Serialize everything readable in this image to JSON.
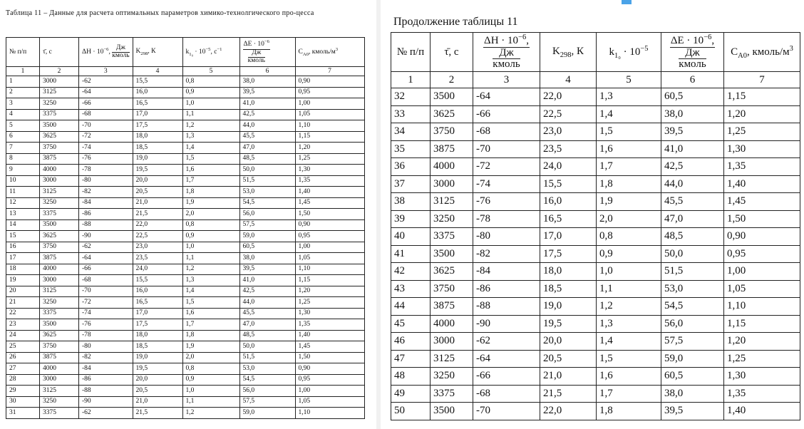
{
  "tables": [
    {
      "title": "Таблица 11 – Данные для расчета оптимальных параметров химико-технолгического про-цесса",
      "headers": [
        {
          "segments": [
            {
              "text": "№ п/п"
            }
          ]
        },
        {
          "segments": [
            {
              "text": "τ̄, с"
            }
          ]
        },
        {
          "segments": [
            {
              "text": "ΔH · 10"
            },
            {
              "text": "−6",
              "sup": true
            },
            {
              "text": ","
            }
          ],
          "frac": [
            "Дж",
            "кмоль"
          ]
        },
        {
          "segments": [
            {
              "text": "K"
            },
            {
              "text": "298",
              "sub": true
            },
            {
              "text": ", К"
            }
          ]
        },
        {
          "segments": [
            {
              "text": "k"
            },
            {
              "text": "1₀",
              "sub": true
            },
            {
              "text": " · 10"
            },
            {
              "text": "−5",
              "sup": true
            },
            {
              "text": ", с"
            },
            {
              "text": "−1",
              "sup": true
            }
          ]
        },
        {
          "segments": [
            {
              "text": "ΔE · 10"
            },
            {
              "text": "−6",
              "sup": true
            }
          ],
          "frac": [
            "Дж",
            "кмоль"
          ],
          "stacked": true
        },
        {
          "segments": [
            {
              "text": "C"
            },
            {
              "text": "A0",
              "sub": true
            },
            {
              "text": ", кмоль/м"
            },
            {
              "text": "3",
              "sup": true
            }
          ]
        }
      ],
      "column_numbers": [
        "1",
        "2",
        "3",
        "4",
        "5",
        "6",
        "7"
      ],
      "rows": [
        [
          "1",
          "3000",
          "-62",
          "15,5",
          "0,8",
          "38,0",
          "0,90"
        ],
        [
          "2",
          "3125",
          "-64",
          "16,0",
          "0,9",
          "39,5",
          "0,95"
        ],
        [
          "3",
          "3250",
          "-66",
          "16,5",
          "1,0",
          "41,0",
          "1,00"
        ],
        [
          "4",
          "3375",
          "-68",
          "17,0",
          "1,1",
          "42,5",
          "1,05"
        ],
        [
          "5",
          "3500",
          "-70",
          "17,5",
          "1,2",
          "44,0",
          "1,10"
        ],
        [
          "6",
          "3625",
          "-72",
          "18,0",
          "1,3",
          "45,5",
          "1,15"
        ],
        [
          "7",
          "3750",
          "-74",
          "18,5",
          "1,4",
          "47,0",
          "1,20"
        ],
        [
          "8",
          "3875",
          "-76",
          "19,0",
          "1,5",
          "48,5",
          "1,25"
        ],
        [
          "9",
          "4000",
          "-78",
          "19,5",
          "1,6",
          "50,0",
          "1,30"
        ],
        [
          "10",
          "3000",
          "-80",
          "20,0",
          "1,7",
          "51,5",
          "1,35"
        ],
        [
          "11",
          "3125",
          "-82",
          "20,5",
          "1,8",
          "53,0",
          "1,40"
        ],
        [
          "12",
          "3250",
          "-84",
          "21,0",
          "1,9",
          "54,5",
          "1,45"
        ],
        [
          "13",
          "3375",
          "-86",
          "21,5",
          "2,0",
          "56,0",
          "1,50"
        ],
        [
          "14",
          "3500",
          "-88",
          "22,0",
          "0,8",
          "57,5",
          "0,90"
        ],
        [
          "15",
          "3625",
          "-90",
          "22,5",
          "0,9",
          "59,0",
          "0,95"
        ],
        [
          "16",
          "3750",
          "-62",
          "23,0",
          "1,0",
          "60,5",
          "1,00"
        ],
        [
          "17",
          "3875",
          "-64",
          "23,5",
          "1,1",
          "38,0",
          "1,05"
        ],
        [
          "18",
          "4000",
          "-66",
          "24,0",
          "1,2",
          "39,5",
          "1,10"
        ],
        [
          "19",
          "3000",
          "-68",
          "15,5",
          "1,3",
          "41,0",
          "1,15"
        ],
        [
          "20",
          "3125",
          "-70",
          "16,0",
          "1,4",
          "42,5",
          "1,20"
        ],
        [
          "21",
          "3250",
          "-72",
          "16,5",
          "1,5",
          "44,0",
          "1,25"
        ],
        [
          "22",
          "3375",
          "-74",
          "17,0",
          "1,6",
          "45,5",
          "1,30"
        ],
        [
          "23",
          "3500",
          "-76",
          "17,5",
          "1,7",
          "47,0",
          "1,35"
        ],
        [
          "24",
          "3625",
          "-78",
          "18,0",
          "1,8",
          "48,5",
          "1,40"
        ],
        [
          "25",
          "3750",
          "-80",
          "18,5",
          "1,9",
          "50,0",
          "1,45"
        ],
        [
          "26",
          "3875",
          "-82",
          "19,0",
          "2,0",
          "51,5",
          "1,50"
        ],
        [
          "27",
          "4000",
          "-84",
          "19,5",
          "0,8",
          "53,0",
          "0,90"
        ],
        [
          "28",
          "3000",
          "-86",
          "20,0",
          "0,9",
          "54,5",
          "0,95"
        ],
        [
          "29",
          "3125",
          "-88",
          "20,5",
          "1,0",
          "56,0",
          "1,00"
        ],
        [
          "30",
          "3250",
          "-90",
          "21,0",
          "1,1",
          "57,5",
          "1,05"
        ],
        [
          "31",
          "3375",
          "-62",
          "21,5",
          "1,2",
          "59,0",
          "1,10"
        ]
      ]
    },
    {
      "title": "Продолжение таблицы 11",
      "headers": [
        {
          "segments": [
            {
              "text": "№ п/п"
            }
          ]
        },
        {
          "segments": [
            {
              "text": "τ̄, с"
            }
          ]
        },
        {
          "segments": [
            {
              "text": "ΔH · 10"
            },
            {
              "text": "−6",
              "sup": true
            },
            {
              "text": ","
            }
          ],
          "frac": [
            "Дж",
            "кмоль"
          ],
          "stacked": true
        },
        {
          "segments": [
            {
              "text": "K"
            },
            {
              "text": "298",
              "sub": true
            },
            {
              "text": ", К"
            }
          ]
        },
        {
          "segments": [
            {
              "text": "k"
            },
            {
              "text": "1₀",
              "sub": true
            },
            {
              "text": " · 10"
            },
            {
              "text": "−5",
              "sup": true
            }
          ]
        },
        {
          "segments": [
            {
              "text": "ΔE · 10"
            },
            {
              "text": "−6",
              "sup": true
            },
            {
              "text": ","
            }
          ],
          "frac": [
            "Дж",
            "кмоль"
          ],
          "stacked": true
        },
        {
          "segments": [
            {
              "text": "C"
            },
            {
              "text": "A0",
              "sub": true
            },
            {
              "text": ", кмоль/м"
            },
            {
              "text": "3",
              "sup": true
            }
          ]
        }
      ],
      "column_numbers": [
        "1",
        "2",
        "3",
        "4",
        "5",
        "6",
        "7"
      ],
      "rows": [
        [
          "32",
          "3500",
          "-64",
          "22,0",
          "1,3",
          "60,5",
          "1,15"
        ],
        [
          "33",
          "3625",
          "-66",
          "22,5",
          "1,4",
          "38,0",
          "1,20"
        ],
        [
          "34",
          "3750",
          "-68",
          "23,0",
          "1,5",
          "39,5",
          "1,25"
        ],
        [
          "35",
          "3875",
          "-70",
          "23,5",
          "1,6",
          "41,0",
          "1,30"
        ],
        [
          "36",
          "4000",
          "-72",
          "24,0",
          "1,7",
          "42,5",
          "1,35"
        ],
        [
          "37",
          "3000",
          "-74",
          "15,5",
          "1,8",
          "44,0",
          "1,40"
        ],
        [
          "38",
          "3125",
          "-76",
          "16,0",
          "1,9",
          "45,5",
          "1,45"
        ],
        [
          "39",
          "3250",
          "-78",
          "16,5",
          "2,0",
          "47,0",
          "1,50"
        ],
        [
          "40",
          "3375",
          "-80",
          "17,0",
          "0,8",
          "48,5",
          "0,90"
        ],
        [
          "41",
          "3500",
          "-82",
          "17,5",
          "0,9",
          "50,0",
          "0,95"
        ],
        [
          "42",
          "3625",
          "-84",
          "18,0",
          "1,0",
          "51,5",
          "1,00"
        ],
        [
          "43",
          "3750",
          "-86",
          "18,5",
          "1,1",
          "53,0",
          "1,05"
        ],
        [
          "44",
          "3875",
          "-88",
          "19,0",
          "1,2",
          "54,5",
          "1,10"
        ],
        [
          "45",
          "4000",
          "-90",
          "19,5",
          "1,3",
          "56,0",
          "1,15"
        ],
        [
          "46",
          "3000",
          "-62",
          "20,0",
          "1,4",
          "57,5",
          "1,20"
        ],
        [
          "47",
          "3125",
          "-64",
          "20,5",
          "1,5",
          "59,0",
          "1,25"
        ],
        [
          "48",
          "3250",
          "-66",
          "21,0",
          "1,6",
          "60,5",
          "1,30"
        ],
        [
          "49",
          "3375",
          "-68",
          "21,5",
          "1,7",
          "38,0",
          "1,35"
        ],
        [
          "50",
          "3500",
          "-70",
          "22,0",
          "1,8",
          "39,5",
          "1,40"
        ]
      ]
    }
  ]
}
